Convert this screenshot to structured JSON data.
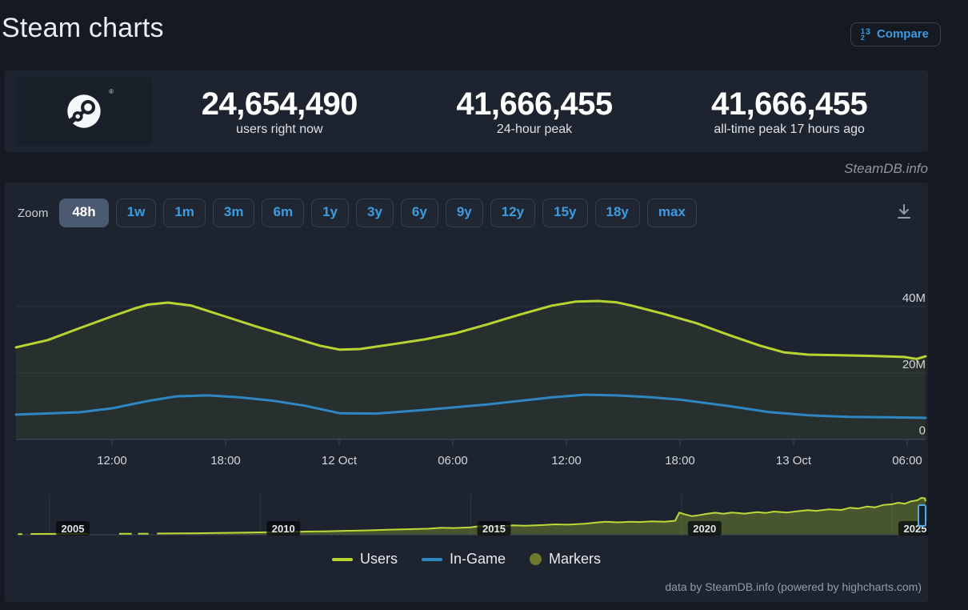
{
  "page": {
    "title": "Steam charts",
    "watermark": "SteamDB.info",
    "credits": "data by SteamDB.info (powered by highcharts.com)"
  },
  "header": {
    "compare_label": "Compare"
  },
  "stats": [
    {
      "value": "24,654,490",
      "label": "users right now"
    },
    {
      "value": "41,666,455",
      "label": "24-hour peak"
    },
    {
      "value": "41,666,455",
      "label": "all-time peak 17 hours ago"
    }
  ],
  "toolbar": {
    "zoom_label": "Zoom",
    "ranges": [
      "48h",
      "1w",
      "1m",
      "3m",
      "6m",
      "1y",
      "3y",
      "6y",
      "9y",
      "12y",
      "15y",
      "18y",
      "max"
    ],
    "selected": "48h"
  },
  "legend": [
    {
      "label": "Users",
      "color": "#b7d531",
      "type": "line"
    },
    {
      "label": "In-Game",
      "color": "#2e86c3",
      "type": "line"
    },
    {
      "label": "Markers",
      "color": "#6d7a2e",
      "type": "circle"
    }
  ],
  "colors": {
    "accent_blue": "#3d9be0",
    "users": "#b7d531",
    "ingame": "#2e86c3",
    "markers": "#6d7a2e",
    "grid": "#2c3342",
    "axis": "#3d4454",
    "nav_line": "#bcd936",
    "nav_fill": "rgba(183,214,50,0.28)",
    "users_fill": "rgba(182,213,48,0.07)",
    "handle": "#58a8e8",
    "chip_bg": "rgba(8,10,14,0.78)"
  },
  "chart_data": {
    "type": "line",
    "unit": "millions of concurrent users",
    "x_ticks": [
      "12:00",
      "18:00",
      "12 Oct",
      "06:00",
      "12:00",
      "18:00",
      "13 Oct",
      "06:00"
    ],
    "y_ticks": [
      {
        "label": "40M",
        "value": 40
      },
      {
        "label": "20M",
        "value": 20
      },
      {
        "label": "0",
        "value": 0
      }
    ],
    "ylim": [
      0,
      43
    ],
    "series": [
      {
        "name": "Users",
        "color": "#b7d531",
        "fill": "rgba(182,213,48,0.07)",
        "points": [
          [
            0,
            27.7
          ],
          [
            0.035,
            29.9
          ],
          [
            0.07,
            33.5
          ],
          [
            0.106,
            37.1
          ],
          [
            0.13,
            39.4
          ],
          [
            0.145,
            40.6
          ],
          [
            0.167,
            41.2
          ],
          [
            0.193,
            40.3
          ],
          [
            0.229,
            37.1
          ],
          [
            0.264,
            34.0
          ],
          [
            0.299,
            31.1
          ],
          [
            0.334,
            28.2
          ],
          [
            0.356,
            27.0
          ],
          [
            0.378,
            27.2
          ],
          [
            0.413,
            28.6
          ],
          [
            0.449,
            30.1
          ],
          [
            0.484,
            32.0
          ],
          [
            0.519,
            34.7
          ],
          [
            0.554,
            37.6
          ],
          [
            0.589,
            40.3
          ],
          [
            0.615,
            41.5
          ],
          [
            0.64,
            41.7
          ],
          [
            0.66,
            41.3
          ],
          [
            0.677,
            40.3
          ],
          [
            0.712,
            37.8
          ],
          [
            0.748,
            35.0
          ],
          [
            0.783,
            31.5
          ],
          [
            0.818,
            28.2
          ],
          [
            0.844,
            26.2
          ],
          [
            0.871,
            25.5
          ],
          [
            0.906,
            25.3
          ],
          [
            0.941,
            25.1
          ],
          [
            0.976,
            24.8
          ],
          [
            0.99,
            24.2
          ],
          [
            1,
            25.0
          ]
        ]
      },
      {
        "name": "In-Game",
        "color": "#2e86c3",
        "points": [
          [
            0,
            7.4
          ],
          [
            0.07,
            8.1
          ],
          [
            0.106,
            9.3
          ],
          [
            0.145,
            11.5
          ],
          [
            0.176,
            12.9
          ],
          [
            0.211,
            13.2
          ],
          [
            0.246,
            12.6
          ],
          [
            0.282,
            11.6
          ],
          [
            0.317,
            10.1
          ],
          [
            0.356,
            7.8
          ],
          [
            0.396,
            7.7
          ],
          [
            0.449,
            8.8
          ],
          [
            0.519,
            10.5
          ],
          [
            0.589,
            12.6
          ],
          [
            0.625,
            13.4
          ],
          [
            0.66,
            13.2
          ],
          [
            0.695,
            12.7
          ],
          [
            0.73,
            11.9
          ],
          [
            0.783,
            10.0
          ],
          [
            0.827,
            8.2
          ],
          [
            0.871,
            7.2
          ],
          [
            0.915,
            6.7
          ],
          [
            0.958,
            6.6
          ],
          [
            1,
            6.4
          ]
        ]
      }
    ],
    "navigator": {
      "years": [
        2005,
        2010,
        2015,
        2020,
        2025
      ],
      "ylim": [
        0,
        42
      ],
      "segments": [
        [
          [
            2004.25,
            0.3
          ],
          [
            2004.35,
            0.3
          ]
        ],
        [
          [
            2004.55,
            0.5
          ],
          [
            2005.9,
            0.6
          ]
        ],
        [
          [
            2006.65,
            0.6
          ],
          [
            2006.95,
            0.65
          ]
        ],
        [
          [
            2007.1,
            0.7
          ],
          [
            2007.35,
            0.75
          ]
        ],
        [
          [
            2007.55,
            0.9
          ],
          [
            2008,
            1.1
          ],
          [
            2008.5,
            1.3
          ],
          [
            2009,
            1.6
          ],
          [
            2009.5,
            1.9
          ],
          [
            2010,
            2.3
          ],
          [
            2010.5,
            2.7
          ],
          [
            2011,
            3.1
          ],
          [
            2011.5,
            3.5
          ],
          [
            2012,
            4.0
          ],
          [
            2012.5,
            4.5
          ],
          [
            2013,
            5.2
          ],
          [
            2013.5,
            5.8
          ],
          [
            2014,
            6.5
          ],
          [
            2014.3,
            7.5
          ],
          [
            2014.6,
            7.2
          ],
          [
            2015,
            8.0
          ],
          [
            2015.2,
            9.3
          ],
          [
            2015.4,
            8.6
          ],
          [
            2015.8,
            9.2
          ],
          [
            2016,
            10.2
          ],
          [
            2016.3,
            9.8
          ],
          [
            2016.7,
            10.6
          ],
          [
            2017,
            11.4
          ],
          [
            2017.3,
            11.0
          ],
          [
            2017.7,
            12.0
          ],
          [
            2018,
            13.6
          ],
          [
            2018.2,
            14.4
          ],
          [
            2018.5,
            13.7
          ],
          [
            2018.8,
            14.3
          ],
          [
            2019,
            14.0
          ],
          [
            2019.3,
            14.8
          ],
          [
            2019.6,
            14.4
          ],
          [
            2019.85,
            15.5
          ],
          [
            2019.95,
            24.8
          ],
          [
            2020.1,
            22.5
          ],
          [
            2020.25,
            20.8
          ],
          [
            2020.4,
            21.7
          ],
          [
            2020.6,
            23.3
          ],
          [
            2020.8,
            24.6
          ],
          [
            2021,
            23.4
          ],
          [
            2021.2,
            24.8
          ],
          [
            2021.5,
            23.6
          ],
          [
            2021.8,
            25.2
          ],
          [
            2022,
            24.3
          ],
          [
            2022.2,
            26.0
          ],
          [
            2022.5,
            24.8
          ],
          [
            2022.8,
            26.5
          ],
          [
            2023,
            27.6
          ],
          [
            2023.2,
            26.8
          ],
          [
            2023.5,
            28.5
          ],
          [
            2023.8,
            27.8
          ],
          [
            2024,
            30.2
          ],
          [
            2024.2,
            29.4
          ],
          [
            2024.4,
            31.6
          ],
          [
            2024.6,
            30.8
          ],
          [
            2024.8,
            33.5
          ],
          [
            2025,
            34.2
          ],
          [
            2025.15,
            36.0
          ],
          [
            2025.3,
            34.8
          ],
          [
            2025.45,
            37.5
          ],
          [
            2025.6,
            38.8
          ],
          [
            2025.7,
            41.5
          ],
          [
            2025.78,
            41.0
          ],
          [
            2025.82,
            37.5
          ]
        ]
      ]
    }
  }
}
